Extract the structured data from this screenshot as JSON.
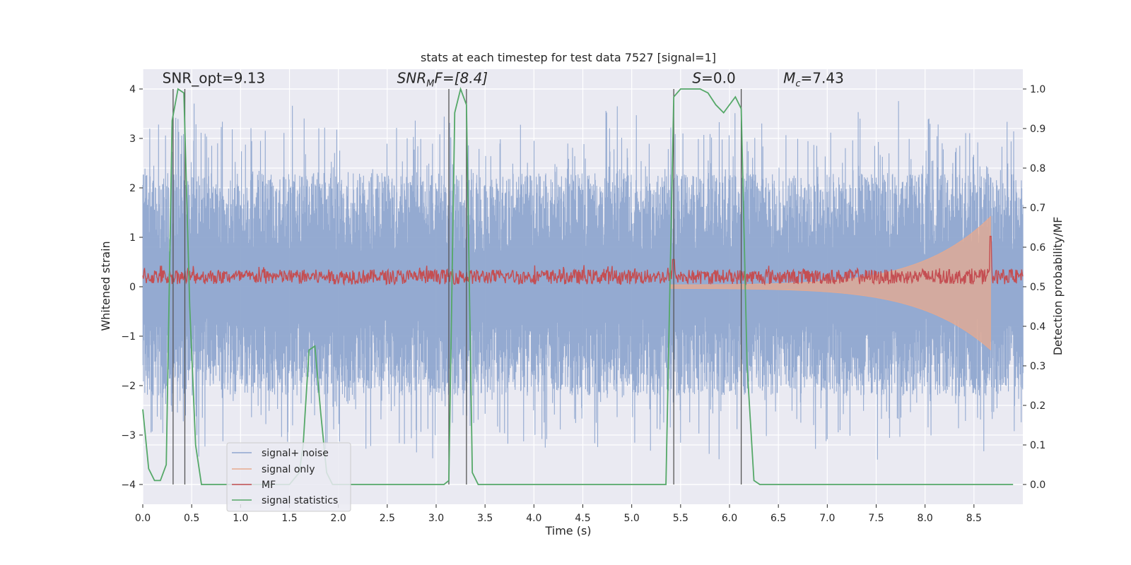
{
  "chart_data": {
    "type": "line",
    "title": "stats at each timestep for test data 7527 [signal=1]",
    "xlabel": "Time (s)",
    "ylabel": "Whitened strain",
    "ylabel_right": "Detection probability/MF",
    "xlim": [
      0.0,
      9.0
    ],
    "ylim": [
      -4.4,
      4.4
    ],
    "ylim_right": [
      -0.05,
      1.05
    ],
    "x_ticks": [
      0.0,
      0.5,
      1.0,
      1.5,
      2.0,
      2.5,
      3.0,
      3.5,
      4.0,
      4.5,
      5.0,
      5.5,
      6.0,
      6.5,
      7.0,
      7.5,
      8.0,
      8.5
    ],
    "x_tick_labels": [
      "0.0",
      "0.5",
      "1.0",
      "1.5",
      "2.0",
      "2.5",
      "3.0",
      "3.5",
      "4.0",
      "4.5",
      "5.0",
      "5.5",
      "6.0",
      "6.5",
      "7.0",
      "7.5",
      "8.0",
      "8.5"
    ],
    "y_ticks": [
      -4,
      -3,
      -2,
      -1,
      0,
      1,
      2,
      3,
      4
    ],
    "y_tick_labels": [
      "−4",
      "−3",
      "−2",
      "−1",
      "0",
      "1",
      "2",
      "3",
      "4"
    ],
    "y_right_ticks": [
      0.0,
      0.1,
      0.2,
      0.3,
      0.4,
      0.5,
      0.6,
      0.7,
      0.8,
      0.9,
      1.0
    ],
    "y_right_tick_labels": [
      "0.0",
      "0.1",
      "0.2",
      "0.3",
      "0.4",
      "0.5",
      "0.6",
      "0.7",
      "0.8",
      "0.9",
      "1.0"
    ],
    "grid": true,
    "legend_position": "lower-left",
    "annotations": {
      "snr_opt": {
        "x": 0.2,
        "y": 4.12,
        "text": "SNR_opt=9.13"
      },
      "snr_mf": {
        "x": 2.6,
        "y": 4.12,
        "label": "SNR",
        "sub": "M",
        "suffix": "F=[8.4]"
      },
      "s_val": {
        "x": 5.62,
        "y": 4.12,
        "label": "S",
        "suffix": "=0.0"
      },
      "mc_val": {
        "x": 6.55,
        "y": 4.12,
        "label": "M",
        "sub": "c",
        "suffix": "=7.43"
      }
    },
    "vertical_lines": [
      0.31,
      0.43,
      3.13,
      3.31,
      5.43,
      6.12
    ],
    "series": [
      {
        "name": "signal+ noise",
        "color": "#8fa6cf",
        "kind": "noise",
        "amplitude_range": [
          -3.6,
          4.0
        ]
      },
      {
        "name": "signal only",
        "color": "#e8a98e",
        "kind": "chirp",
        "start": 5.4,
        "end": 8.67,
        "peak_amplitude": 1.2
      },
      {
        "name": "MF",
        "color": "#c44e52",
        "kind": "mf",
        "base_range": [
          0.0,
          0.5
        ],
        "peaks": [
          [
            5.43,
            0.55
          ],
          [
            8.67,
            1.02
          ]
        ]
      },
      {
        "name": "signal statistics",
        "color": "#55a868",
        "axis": "right",
        "x": [
          0.0,
          0.06,
          0.12,
          0.18,
          0.24,
          0.3,
          0.36,
          0.42,
          0.48,
          0.54,
          0.6,
          0.7,
          1.0,
          1.3,
          1.5,
          1.6,
          1.64,
          1.7,
          1.76,
          1.82,
          1.88,
          1.94,
          2.0,
          2.5,
          3.0,
          3.08,
          3.13,
          3.19,
          3.25,
          3.31,
          3.37,
          3.43,
          4.0,
          5.0,
          5.35,
          5.43,
          5.5,
          5.56,
          5.62,
          5.7,
          5.78,
          5.86,
          5.94,
          6.0,
          6.06,
          6.12,
          6.18,
          6.25,
          6.31,
          7.0,
          8.0,
          8.9
        ],
        "values": [
          0.19,
          0.04,
          0.01,
          0.01,
          0.05,
          0.92,
          1.0,
          0.99,
          0.45,
          0.1,
          0.0,
          0.0,
          0.0,
          0.0,
          0.0,
          0.03,
          0.1,
          0.34,
          0.35,
          0.18,
          0.03,
          0.0,
          0.0,
          0.0,
          0.0,
          0.0,
          0.01,
          0.94,
          1.0,
          0.96,
          0.03,
          0.0,
          0.0,
          0.0,
          0.0,
          0.98,
          1.0,
          1.0,
          1.0,
          1.0,
          0.99,
          0.96,
          0.94,
          0.96,
          0.98,
          0.95,
          0.3,
          0.01,
          0.0,
          0.0,
          0.0,
          0.0
        ]
      }
    ]
  }
}
